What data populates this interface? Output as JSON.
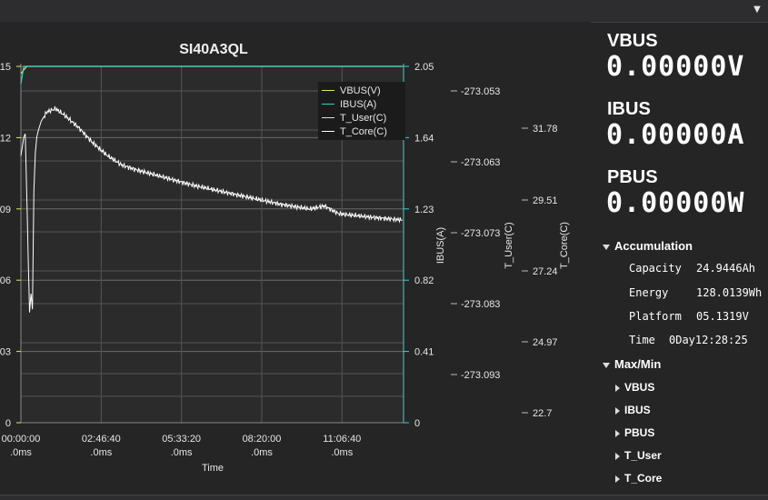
{
  "chart_data": {
    "type": "line",
    "title": "SI40A3QL",
    "xlabel": "Time",
    "x_ticks": [
      {
        "line1": "00:00:00",
        "line2": ".0ms"
      },
      {
        "line1": "02:46:40",
        "line2": ".0ms"
      },
      {
        "line1": "05:33:20",
        "line2": ".0ms"
      },
      {
        "line1": "08:20:00",
        "line2": ".0ms"
      },
      {
        "line1": "11:06:40",
        "line2": ".0ms"
      }
    ],
    "axes": [
      {
        "id": "vbus",
        "label": "",
        "ticks": [
          "15",
          "12",
          "09",
          "06",
          "03",
          "0"
        ],
        "ylim": [
          0,
          15
        ]
      },
      {
        "id": "ibus",
        "label": "IBUS(A)",
        "ticks": [
          "2.05",
          "1.64",
          "1.23",
          "0.82",
          "0.41",
          "0"
        ],
        "ylim": [
          0,
          2.05
        ]
      },
      {
        "id": "tuser",
        "label": "T_User(C)",
        "ticks": [
          "-273.053",
          "-273.063",
          "-273.073",
          "-273.083",
          "-273.093"
        ]
      },
      {
        "id": "tcore",
        "label": "T_Core(C)",
        "ticks": [
          "31.78",
          "29.51",
          "27.24",
          "24.97",
          "22.7"
        ]
      }
    ],
    "series": [
      {
        "name": "VBUS(V)",
        "color": "#e8e84a",
        "x_hours": [
          0,
          0.2,
          13.2
        ],
        "values": [
          14.7,
          15.0,
          15.0
        ]
      },
      {
        "name": "IBUS(A)",
        "color": "#3fd0d0",
        "x_hours": [
          0,
          0.1,
          13.2
        ],
        "values": [
          1.95,
          2.05,
          2.05
        ]
      },
      {
        "name": "T_User(C)",
        "color": "#e0e0e0",
        "x_hours": [],
        "values": []
      },
      {
        "name": "T_Core(C)",
        "color": "#ffffff",
        "x_hours": [
          0,
          0.1,
          0.15,
          0.25,
          0.3,
          0.35,
          0.4,
          0.45,
          0.5,
          0.55,
          0.6,
          0.7,
          0.9,
          1.2,
          1.5,
          2.0,
          2.5,
          3.0,
          3.5,
          4.0,
          5.0,
          6.0,
          7.0,
          8.0,
          9.0,
          10.0,
          10.5,
          11.0,
          12.0,
          13.2
        ],
        "values": [
          30.9,
          31.5,
          31.6,
          27.8,
          25.9,
          26.5,
          26.0,
          29.8,
          31.0,
          31.5,
          31.7,
          32.0,
          32.3,
          32.4,
          32.2,
          31.8,
          31.3,
          30.9,
          30.6,
          30.45,
          30.2,
          29.95,
          29.75,
          29.55,
          29.35,
          29.2,
          29.3,
          29.05,
          28.95,
          28.85
        ]
      }
    ],
    "grid": true,
    "legend": "top-right"
  },
  "panel": {
    "metrics": [
      {
        "name": "VBUS",
        "value": "0.00000V"
      },
      {
        "name": "IBUS",
        "value": "0.00000A"
      },
      {
        "name": "PBUS",
        "value": "0.00000W"
      }
    ],
    "accumulation": {
      "title": "Accumulation",
      "rows": [
        {
          "label": "Capacity",
          "value": "24.9446Ah"
        },
        {
          "label": "Energy",
          "value": "128.0139Wh"
        },
        {
          "label": "Platform",
          "value": "05.1319V"
        },
        {
          "label": "Time",
          "value": "0Day12:28:25"
        }
      ]
    },
    "maxmin": {
      "title": "Max/Min",
      "items": [
        "VBUS",
        "IBUS",
        "PBUS",
        "T_User",
        "T_Core"
      ]
    }
  }
}
